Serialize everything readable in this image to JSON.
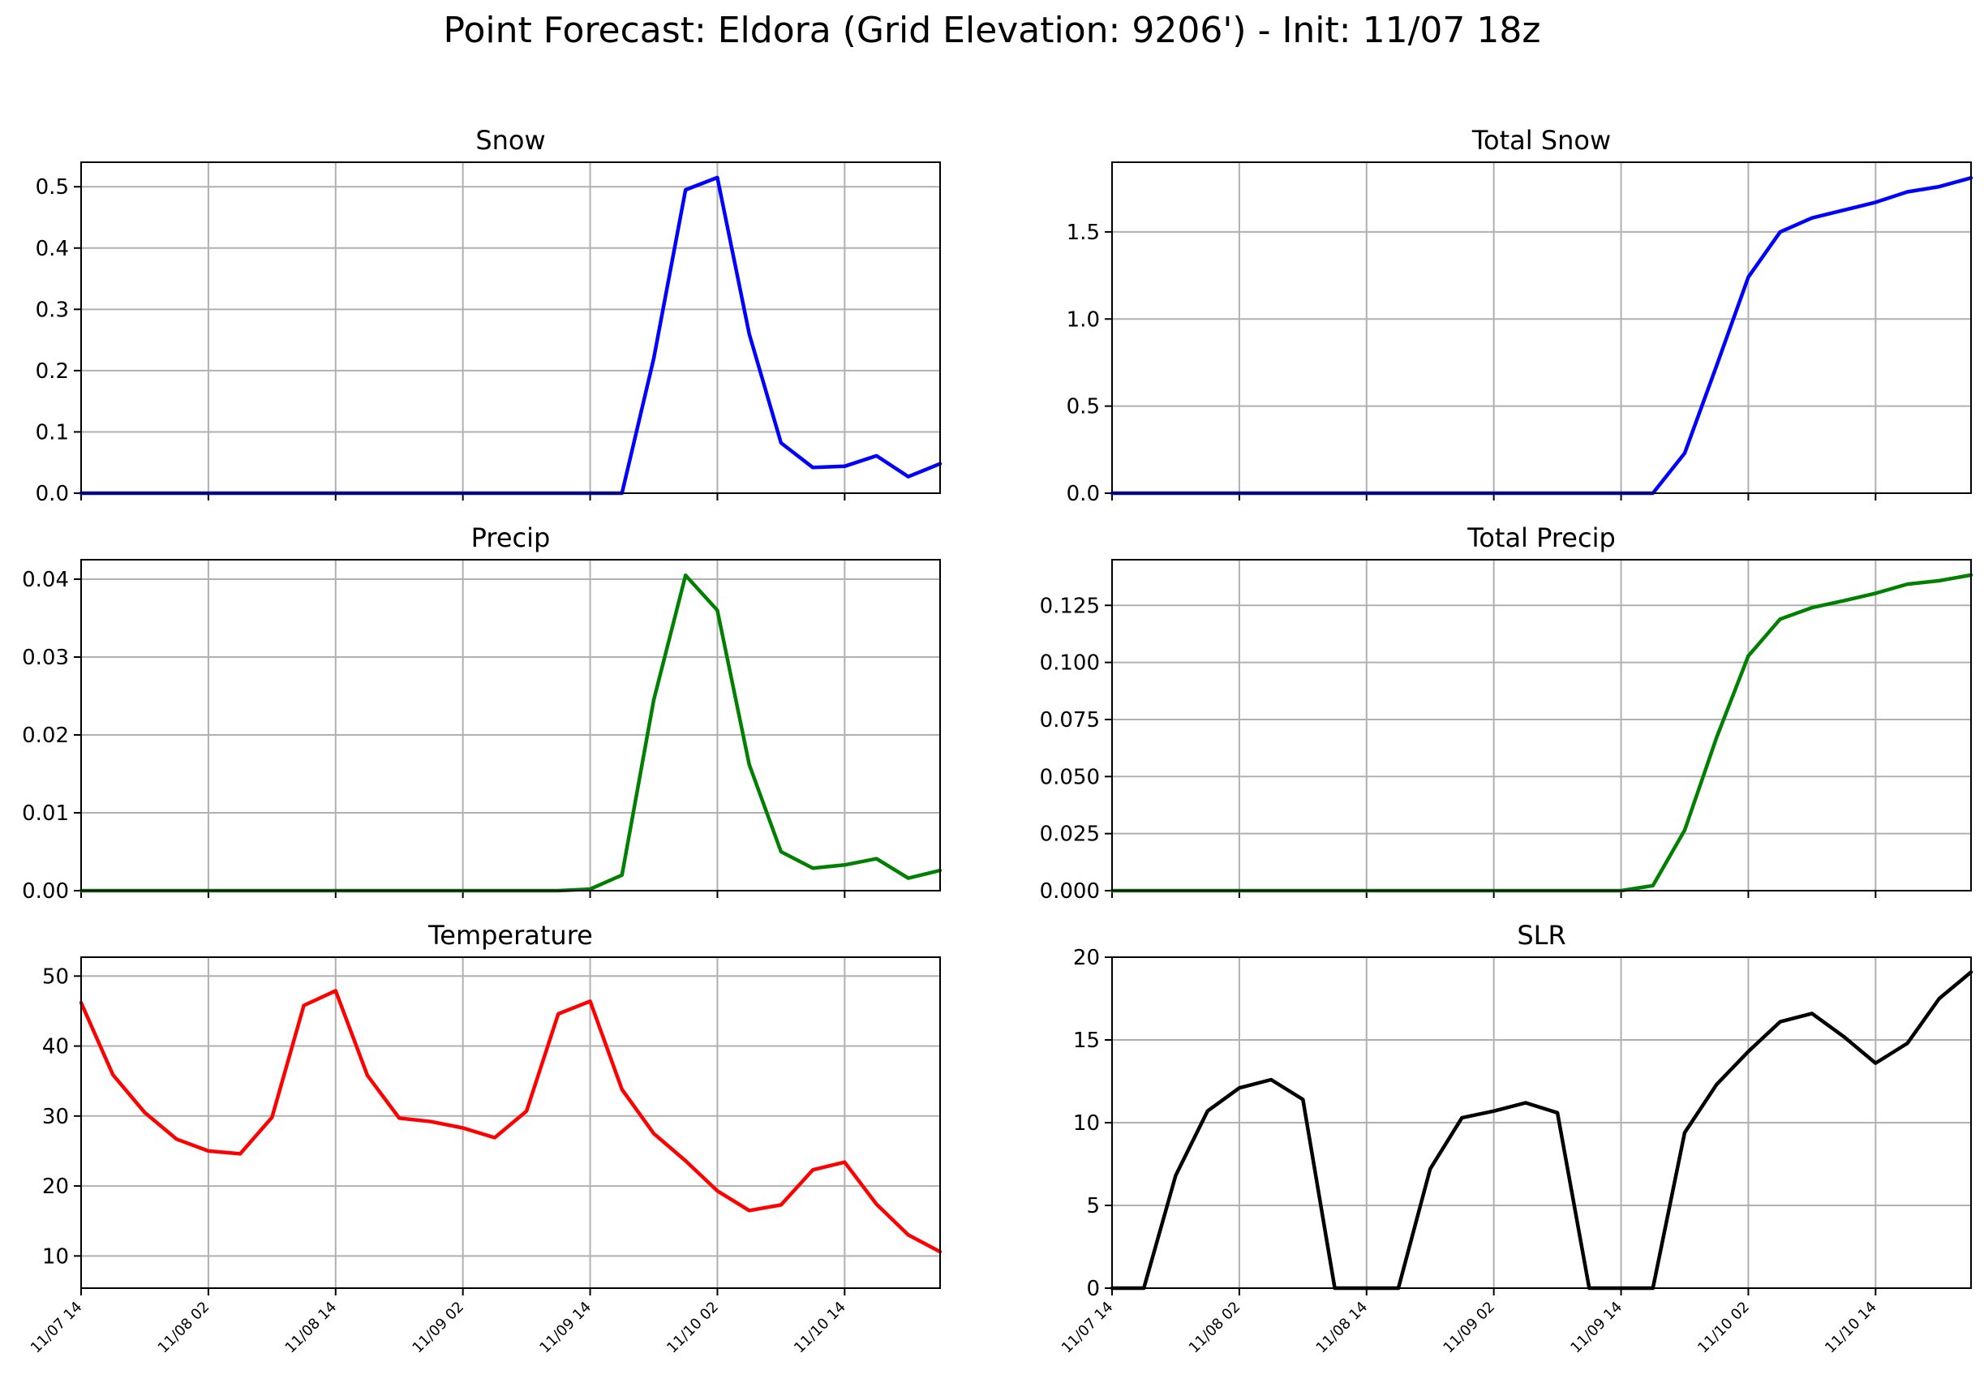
{
  "figure": {
    "title": "Point Forecast: Eldora (Grid Elevation: 9206') - Init: 11/07 18z"
  },
  "chart_data": [
    {
      "type": "line",
      "title": "Snow",
      "color": "#0000ff",
      "x_ticks": [
        "11/07 14",
        "11/08 02",
        "11/08 14",
        "11/09 02",
        "11/09 14",
        "11/10 02",
        "11/10 14"
      ],
      "y_ticks": [
        "0.0",
        "0.1",
        "0.2",
        "0.3",
        "0.4",
        "0.5"
      ],
      "ylim": [
        0,
        0.54
      ],
      "grid": true,
      "series": [
        {
          "values": [
            0,
            0,
            0,
            0,
            0,
            0,
            0,
            0,
            0,
            0,
            0,
            0,
            0,
            0,
            0,
            0,
            0,
            0,
            0.22,
            0.495,
            0.515,
            0.26,
            0.082,
            0.042,
            0.044,
            0.061,
            0.027,
            0.048
          ]
        }
      ]
    },
    {
      "type": "line",
      "title": "Total Snow",
      "color": "#0000ff",
      "x_ticks": [
        "11/07 14",
        "11/08 02",
        "11/08 14",
        "11/09 02",
        "11/09 14",
        "11/10 02",
        "11/10 14"
      ],
      "y_ticks": [
        "0.0",
        "0.5",
        "1.0",
        "1.5"
      ],
      "ylim": [
        0,
        1.9
      ],
      "grid": true,
      "series": [
        {
          "values": [
            0,
            0,
            0,
            0,
            0,
            0,
            0,
            0,
            0,
            0,
            0,
            0,
            0,
            0,
            0,
            0,
            0,
            0,
            0.23,
            0.73,
            1.24,
            1.5,
            1.58,
            1.625,
            1.67,
            1.73,
            1.76,
            1.81
          ]
        }
      ]
    },
    {
      "type": "line",
      "title": "Precip",
      "color": "#008000",
      "x_ticks": [
        "11/07 14",
        "11/08 02",
        "11/08 14",
        "11/09 02",
        "11/09 14",
        "11/10 02",
        "11/10 14"
      ],
      "y_ticks": [
        "0.00",
        "0.01",
        "0.02",
        "0.03",
        "0.04"
      ],
      "ylim": [
        0,
        0.0425
      ],
      "grid": true,
      "series": [
        {
          "values": [
            0,
            0,
            0,
            0,
            0,
            0,
            0,
            0,
            0,
            0,
            0,
            0,
            0,
            0,
            0,
            0,
            0.0002,
            0.002,
            0.0245,
            0.0405,
            0.036,
            0.0162,
            0.005,
            0.0029,
            0.0033,
            0.0041,
            0.0016,
            0.0026
          ]
        }
      ]
    },
    {
      "type": "line",
      "title": "Total Precip",
      "color": "#008000",
      "x_ticks": [
        "11/07 14",
        "11/08 02",
        "11/08 14",
        "11/09 02",
        "11/09 14",
        "11/10 02",
        "11/10 14"
      ],
      "y_ticks": [
        "0.000",
        "0.025",
        "0.050",
        "0.075",
        "0.100",
        "0.125"
      ],
      "ylim": [
        0,
        0.145
      ],
      "grid": true,
      "series": [
        {
          "values": [
            0,
            0,
            0,
            0,
            0,
            0,
            0,
            0,
            0,
            0,
            0,
            0,
            0,
            0,
            0,
            0,
            0,
            0.0022,
            0.0265,
            0.067,
            0.1028,
            0.119,
            0.124,
            0.127,
            0.1303,
            0.1343,
            0.1358,
            0.1383
          ]
        }
      ]
    },
    {
      "type": "line",
      "title": "Temperature",
      "color": "#ff0000",
      "x_ticks": [
        "11/07 14",
        "11/08 02",
        "11/08 14",
        "11/09 02",
        "11/09 14",
        "11/10 02",
        "11/10 14"
      ],
      "y_ticks": [
        "10",
        "20",
        "30",
        "40",
        "50"
      ],
      "ylim": [
        5.4,
        52.7
      ],
      "grid": true,
      "series": [
        {
          "values": [
            46.2,
            35.9,
            30.5,
            26.7,
            25.0,
            24.6,
            29.8,
            45.8,
            47.9,
            35.8,
            29.7,
            29.2,
            28.3,
            26.9,
            30.7,
            44.6,
            46.4,
            33.8,
            27.5,
            23.6,
            19.3,
            16.5,
            17.3,
            22.3,
            23.4,
            17.4,
            13.0,
            10.6
          ]
        }
      ]
    },
    {
      "type": "line",
      "title": "SLR",
      "color": "#000000",
      "x_ticks": [
        "11/07 14",
        "11/08 02",
        "11/08 14",
        "11/09 02",
        "11/09 14",
        "11/10 02",
        "11/10 14"
      ],
      "y_ticks": [
        "0",
        "5",
        "10",
        "15",
        "20"
      ],
      "ylim": [
        0,
        20
      ],
      "grid": true,
      "series": [
        {
          "values": [
            0,
            0,
            6.8,
            10.7,
            12.1,
            12.6,
            11.4,
            0,
            0,
            0,
            7.2,
            10.3,
            10.7,
            11.2,
            10.6,
            0,
            0,
            0,
            9.4,
            12.3,
            14.3,
            16.1,
            16.6,
            15.2,
            13.6,
            14.8,
            17.5,
            19.1
          ]
        }
      ]
    }
  ]
}
